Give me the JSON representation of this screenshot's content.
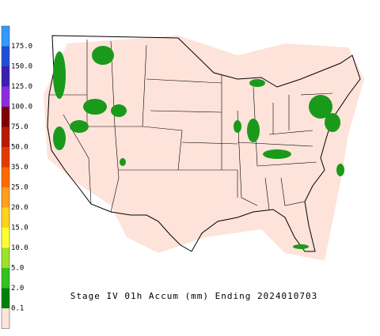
{
  "legend": {
    "labels": [
      "175.0",
      "150.0",
      "125.0",
      "100.0",
      "75.0",
      "50.0",
      "35.0",
      "25.0",
      "20.0",
      "15.0",
      "10.0",
      "5.0",
      "2.0",
      "0.1"
    ]
  },
  "caption": "Stage IV 01h Accum (mm) Ending 2024010703"
}
